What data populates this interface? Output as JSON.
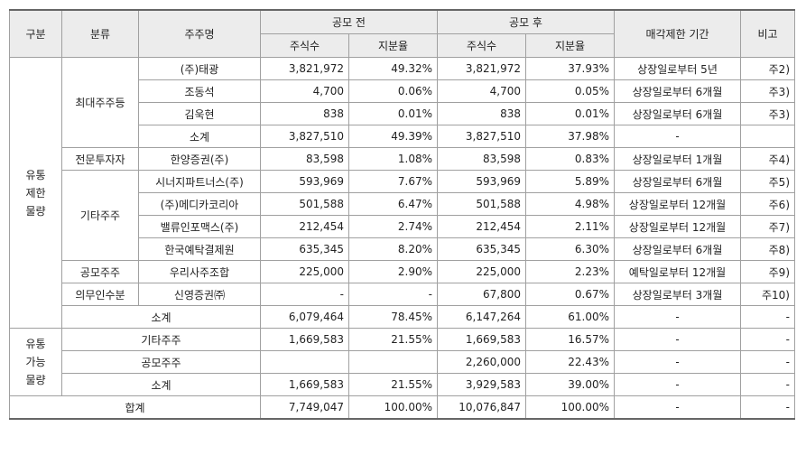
{
  "header": {
    "group": "구분",
    "category": "분류",
    "holder": "주주명",
    "before": "공모 전",
    "after": "공모 후",
    "before_shares": "주식수",
    "before_ratio": "지분율",
    "after_shares": "주식수",
    "after_ratio": "지분율",
    "lockup": "매각제한 기간",
    "note": "비고"
  },
  "restricted": {
    "label_lines": [
      "유통",
      "제한",
      "물량"
    ],
    "groups": [
      {
        "name": "최대주주등",
        "rows": [
          [
            "(주)태광",
            "3,821,972",
            "49.32%",
            "3,821,972",
            "37.93%",
            "상장일로부터 5년",
            "주2)"
          ],
          [
            "조동석",
            "4,700",
            "0.06%",
            "4,700",
            "0.05%",
            "상장일로부터 6개월",
            "주3)"
          ],
          [
            "김욱현",
            "838",
            "0.01%",
            "838",
            "0.01%",
            "상장일로부터 6개월",
            "주3)"
          ],
          [
            "소계",
            "3,827,510",
            "49.39%",
            "3,827,510",
            "37.98%",
            "-",
            null
          ]
        ]
      },
      {
        "name": "전문투자자",
        "rows": [
          [
            "한양증권(주)",
            "83,598",
            "1.08%",
            "83,598",
            "0.83%",
            "상장일로부터 1개월",
            "주4)"
          ]
        ]
      },
      {
        "name": "기타주주",
        "rows": [
          [
            "시너지파트너스(주)",
            "593,969",
            "7.67%",
            "593,969",
            "5.89%",
            "상장일로부터 6개월",
            "주5)"
          ],
          [
            "(주)메디카코리아",
            "501,588",
            "6.47%",
            "501,588",
            "4.98%",
            "상장일로부터 12개월",
            "주6)"
          ],
          [
            "밸류인포맥스(주)",
            "212,454",
            "2.74%",
            "212,454",
            "2.11%",
            "상장일로부터 12개월",
            "주7)"
          ],
          [
            "한국예탁결제원",
            "635,345",
            "8.20%",
            "635,345",
            "6.30%",
            "상장일로부터 6개월",
            "주8)"
          ]
        ]
      },
      {
        "name": "공모주주",
        "rows": [
          [
            "우리사주조합",
            "225,000",
            "2.90%",
            "225,000",
            "2.23%",
            "예탁일로부터 12개월",
            "주9)"
          ]
        ]
      },
      {
        "name": "의무인수분",
        "rows": [
          [
            "신영증권㈜",
            "-",
            "-",
            "67,800",
            "0.67%",
            "상장일로부터 3개월",
            "주10)"
          ]
        ]
      }
    ],
    "subtotal": [
      "소계",
      "6,079,464",
      "78.45%",
      "6,147,264",
      "61.00%",
      "-",
      "-"
    ]
  },
  "tradable": {
    "label_lines": [
      "유통",
      "가능",
      "물량"
    ],
    "rows": [
      [
        "기타주주",
        "1,669,583",
        "21.55%",
        "1,669,583",
        "16.57%",
        "-",
        "-"
      ],
      [
        "공모주주",
        null,
        null,
        "2,260,000",
        "22.43%",
        "-",
        "-"
      ],
      [
        "소계",
        "1,669,583",
        "21.55%",
        "3,929,583",
        "39.00%",
        "-",
        "-"
      ]
    ]
  },
  "total": [
    "합계",
    "7,749,047",
    "100.00%",
    "10,076,847",
    "100.00%",
    "-",
    "-"
  ]
}
